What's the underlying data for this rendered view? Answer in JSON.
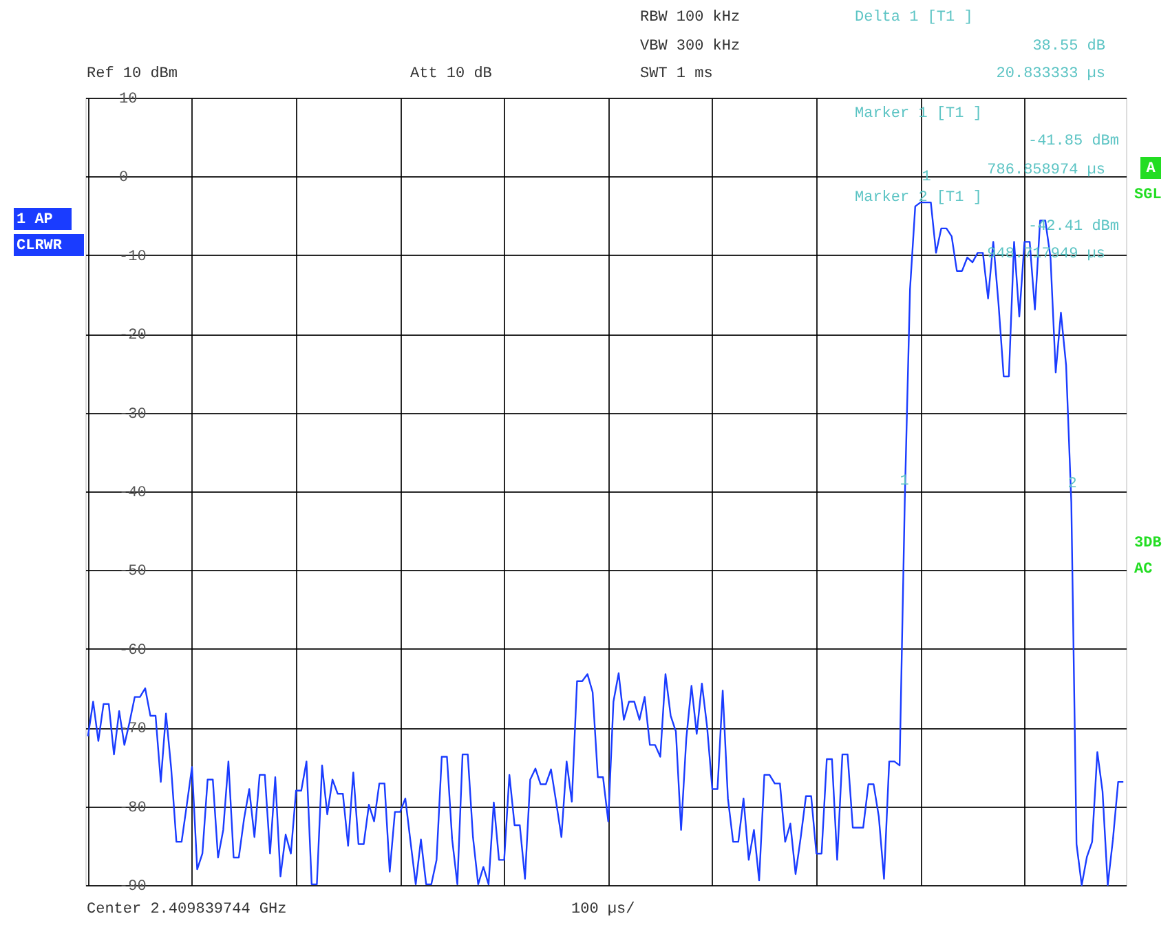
{
  "chart_data": {
    "type": "line",
    "categories": [
      null,
      null,
      null,
      null,
      null,
      null,
      null,
      null,
      null,
      null,
      null,
      null,
      null,
      null,
      null,
      null,
      null,
      null,
      null,
      null,
      null,
      null,
      null,
      null,
      null,
      null,
      null,
      null,
      null,
      null,
      null,
      null,
      null,
      null,
      null,
      null,
      null,
      null,
      null,
      null,
      null,
      null,
      null,
      null,
      null,
      null,
      null,
      null,
      null,
      null,
      null,
      null,
      null,
      null,
      null,
      null,
      null,
      null,
      null,
      null,
      null,
      null,
      null,
      null,
      null,
      null,
      null,
      null,
      null,
      null,
      null,
      null,
      null,
      null,
      null,
      null,
      null,
      null,
      null,
      null,
      null,
      null,
      null,
      null,
      null,
      null,
      null,
      null,
      null,
      null,
      null,
      null,
      null,
      null,
      null,
      null,
      null,
      null,
      null,
      null,
      null,
      null,
      null,
      null,
      null,
      null,
      null,
      null,
      null,
      null,
      null,
      null,
      null,
      null,
      null,
      null,
      null,
      null,
      null,
      null,
      null,
      null,
      null,
      null,
      null,
      null,
      null,
      null,
      null,
      null,
      null,
      null,
      null,
      null,
      null,
      null,
      null,
      null,
      null,
      null,
      null,
      null,
      null,
      null,
      null,
      null,
      null,
      null,
      null,
      null,
      null,
      null,
      null,
      null,
      null,
      null,
      null,
      null,
      null,
      null,
      null,
      null,
      null,
      null,
      null,
      null,
      null,
      null,
      null,
      null,
      null,
      null,
      null,
      null,
      null,
      null,
      null,
      null,
      null,
      null,
      null,
      null,
      null,
      null,
      null,
      null,
      null,
      null,
      null,
      null,
      null,
      null,
      null,
      null,
      null,
      null,
      null,
      null,
      null,
      null
    ],
    "series": [
      {
        "color": "#1a3cff",
        "values": [
          -71.1,
          -66.7,
          -71.7,
          -67,
          -67,
          -73.4,
          -67.9,
          -72.2,
          -69.3,
          -66.1,
          -66.1,
          -65,
          -68.5,
          -68.5,
          -76.9,
          -68.2,
          -75.2,
          -84.5,
          -84.5,
          -79.8,
          -75,
          -88,
          -86,
          -76.6,
          -76.6,
          -86.5,
          -83,
          -74.3,
          -86.5,
          -86.5,
          -81.6,
          -77.8,
          -83.9,
          -76,
          -76,
          -86,
          -76.3,
          -88.9,
          -83.6,
          -86,
          -78,
          -78,
          -74.3,
          -89.9,
          -89.9,
          -74.8,
          -81,
          -76.6,
          -78.4,
          -78.4,
          -85,
          -75.7,
          -84.8,
          -84.8,
          -79.8,
          -81.9,
          -77.1,
          -77.1,
          -88.3,
          -80.7,
          -80.7,
          -79,
          -84.5,
          -89.9,
          -84.2,
          -89.9,
          -89.9,
          -86.8,
          -73.7,
          -73.7,
          -84.2,
          -89.9,
          -73.4,
          -73.4,
          -83.9,
          -89.9,
          -87.7,
          -89.9,
          -79.5,
          -86.8,
          -86.8,
          -76,
          -82.4,
          -82.4,
          -89.2,
          -76.6,
          -75.2,
          -77.2,
          -77.2,
          -75.3,
          -79.5,
          -83.9,
          -74.3,
          -79.4,
          -64.1,
          -64.1,
          -63.2,
          -65.5,
          -76.3,
          -76.3,
          -81.9,
          -66.7,
          -63.1,
          -69,
          -66.7,
          -66.7,
          -69,
          -66.1,
          -72.2,
          -72.2,
          -73.7,
          -63.2,
          -68.5,
          -70.5,
          -83,
          -71.4,
          -64.7,
          -70.8,
          -64.4,
          -69.9,
          -77.8,
          -77.8,
          -65.3,
          -79,
          -84.5,
          -84.5,
          -79,
          -86.8,
          -83,
          -89.4,
          -76,
          -76,
          -77.1,
          -77.1,
          -84.5,
          -82.2,
          -88.6,
          -83.9,
          -78.7,
          -78.7,
          -86,
          -86,
          -74,
          -74,
          -86.8,
          -73.4,
          -73.4,
          -82.7,
          -82.7,
          -82.7,
          -77.2,
          -77.2,
          -81.3,
          -89.2,
          -74.3,
          -74.3,
          -74.8,
          -40.9,
          -14.3,
          -3.8,
          -3.3,
          -3.3,
          -3.3,
          -9.7,
          -6.6,
          -6.6,
          -7.6,
          -12,
          -12,
          -10.3,
          -10.9,
          -9.7,
          -9.7,
          -15.5,
          -8.3,
          -16.1,
          -25.4,
          -25.4,
          -8.3,
          -17.8,
          -8.3,
          -8.3,
          -16.9,
          -5.6,
          -5.6,
          -10.3,
          -24.9,
          -17.3,
          -24,
          -41.4,
          -84.8,
          -90,
          -86.4,
          -84.5,
          -73.1,
          -78.1,
          -90,
          -84.2,
          -76.9,
          -76.9
        ]
      }
    ],
    "ylim": [
      -90,
      10
    ],
    "yticks": [
      10,
      0,
      -10,
      -20,
      -30,
      -40,
      -50,
      -60,
      -70,
      -80,
      -90
    ],
    "tick_labels": "y",
    "line_style": "solid",
    "grid": true,
    "legend": false,
    "annotations": [
      "RBW 100 kHz",
      "VBW 300 kHz",
      "SWT 1 ms",
      "Ref 10 dBm",
      "Att 10 dB",
      "Delta 1 [T1 ]",
      "38.55 dB",
      "20.833333 µs",
      "Marker 1 [T1 ]",
      "-41.85 dBm",
      "786.858974 µs",
      "Marker 2 [T1 ]",
      "-42.41 dBm",
      "948.717949 µs",
      "1 AP",
      "CLRWR",
      "A",
      "SGL",
      "3DB",
      "AC",
      "Center 2.409839744 GHz",
      "100 µs/",
      "1",
      "2",
      "1"
    ]
  }
}
